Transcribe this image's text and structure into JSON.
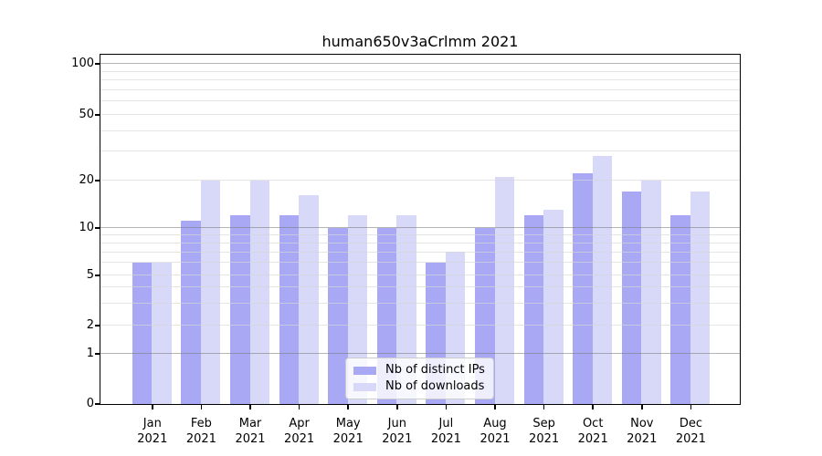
{
  "chart_data": {
    "type": "bar",
    "title": "human650v3aCrlmm 2021",
    "categories": [
      "Jan",
      "Feb",
      "Mar",
      "Apr",
      "May",
      "Jun",
      "Jul",
      "Aug",
      "Sep",
      "Oct",
      "Nov",
      "Dec"
    ],
    "year": "2021",
    "series": [
      {
        "name": "Nb of distinct IPs",
        "color": "#a8a8f4",
        "values": [
          6,
          11,
          12,
          12,
          10,
          10,
          6,
          10,
          12,
          22,
          17,
          12
        ]
      },
      {
        "name": "Nb of downloads",
        "color": "#d8d8f8",
        "values": [
          6,
          20,
          20,
          16,
          12,
          12,
          7,
          21,
          13,
          28,
          20,
          17
        ]
      }
    ],
    "y_axis": {
      "tick_values": [
        0,
        1,
        2,
        5,
        10,
        20,
        50,
        100
      ],
      "tick_labels": [
        "0",
        "1",
        "2",
        "5",
        "10",
        "20",
        "50",
        "100"
      ],
      "major_gridlines": [
        1,
        10,
        100
      ],
      "minor_gridlines": [
        2,
        3,
        4,
        5,
        6,
        7,
        8,
        9,
        20,
        30,
        40,
        50,
        60,
        70,
        80,
        90
      ],
      "range": [
        0,
        100
      ],
      "scale": "log-like (linear between 0 and 1)"
    },
    "legend": {
      "position": "bottom-center",
      "entries": [
        "Nb of distinct IPs",
        "Nb of downloads"
      ]
    },
    "grid": true,
    "background": "#ffffff"
  }
}
